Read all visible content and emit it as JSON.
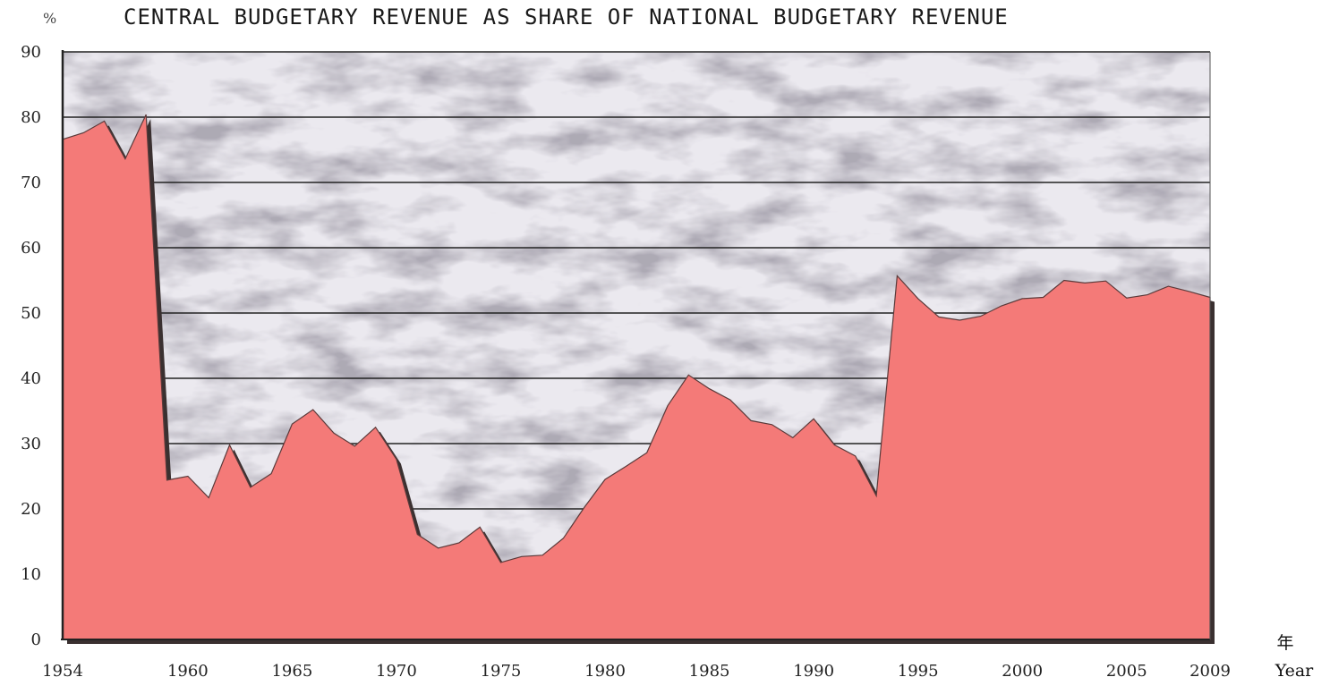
{
  "chart_data": {
    "type": "area",
    "title": "CENTRAL BUDGETARY REVENUE AS SHARE OF NATIONAL BUDGETARY REVENUE",
    "ylabel": "%",
    "xlabel_cn": "年",
    "xlabel": "Year",
    "ylim": [
      0,
      90
    ],
    "xlim": [
      1954,
      2009
    ],
    "y_ticks": [
      "0",
      "10",
      "20",
      "30",
      "40",
      "50",
      "60",
      "70",
      "80",
      "90"
    ],
    "x_ticks": [
      "1954",
      "1960",
      "1965",
      "1970",
      "1975",
      "1980",
      "1985",
      "1990",
      "1995",
      "2000",
      "2005",
      "2009"
    ],
    "grid": true,
    "colors": {
      "area": "#f47a78",
      "shadow": "#3a3030",
      "grid": "#222222",
      "background": "#e6e4ea"
    },
    "x": [
      1954,
      1955,
      1956,
      1957,
      1958,
      1959,
      1960,
      1961,
      1962,
      1963,
      1964,
      1965,
      1966,
      1967,
      1968,
      1969,
      1970,
      1971,
      1972,
      1973,
      1974,
      1975,
      1976,
      1977,
      1978,
      1979,
      1980,
      1981,
      1982,
      1983,
      1984,
      1985,
      1986,
      1987,
      1988,
      1989,
      1990,
      1991,
      1992,
      1993,
      1994,
      1995,
      1996,
      1997,
      1998,
      1999,
      2000,
      2001,
      2002,
      2003,
      2004,
      2005,
      2006,
      2007,
      2008,
      2009
    ],
    "values": [
      76.6,
      77.6,
      79.4,
      73.6,
      80.4,
      24.4,
      25.0,
      21.7,
      29.8,
      23.3,
      25.4,
      33.0,
      35.2,
      31.6,
      29.6,
      32.5,
      27.6,
      16.1,
      14.0,
      14.8,
      17.2,
      11.8,
      12.7,
      12.9,
      15.5,
      20.2,
      24.5,
      26.5,
      28.6,
      35.8,
      40.5,
      38.4,
      36.7,
      33.5,
      32.9,
      30.9,
      33.8,
      29.8,
      28.1,
      22.0,
      55.7,
      52.2,
      49.4,
      48.9,
      49.5,
      51.1,
      52.2,
      52.4,
      55.0,
      54.6,
      54.9,
      52.3,
      52.8,
      54.1,
      53.3,
      52.4
    ]
  }
}
